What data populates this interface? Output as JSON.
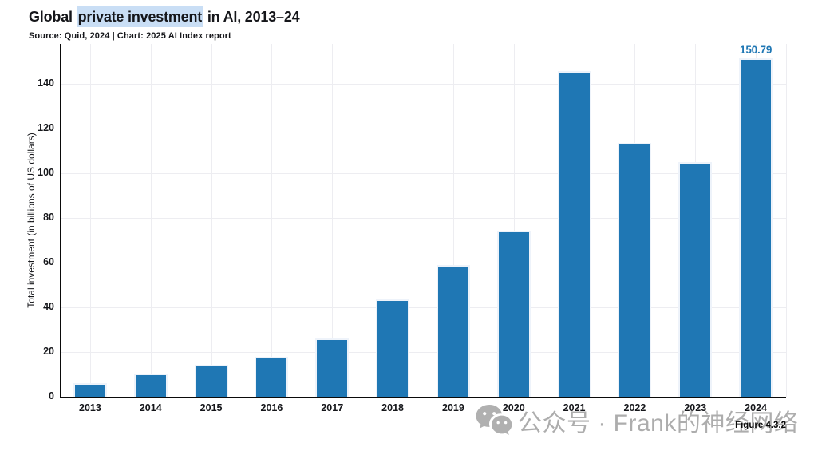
{
  "header": {
    "title_prefix": "Global ",
    "title_highlight": "private investment",
    "title_suffix": " in AI, 2013–24",
    "subtitle": "Source: Quid, 2024 | Chart: 2025 AI Index report"
  },
  "chart_data": {
    "type": "bar",
    "title": "Global private investment in AI, 2013–24",
    "source": "Source: Quid, 2024 | Chart: 2025 AI Index report",
    "categories": [
      "2013",
      "2014",
      "2015",
      "2016",
      "2017",
      "2018",
      "2019",
      "2020",
      "2021",
      "2022",
      "2023",
      "2024"
    ],
    "values": [
      5.4,
      9.5,
      13.6,
      17.2,
      25.5,
      43.0,
      58.1,
      73.6,
      145.2,
      112.9,
      104.3,
      150.79
    ],
    "xlabel": "",
    "ylabel": "Total investment (in billions of US dollars)",
    "ylim": [
      0,
      158
    ],
    "yticks": [
      0,
      20,
      40,
      60,
      80,
      100,
      120,
      140
    ],
    "grid": true,
    "legend": "none",
    "bar_color": "#1f77b4",
    "annotation": {
      "category": "2024",
      "label": "150.79"
    }
  },
  "watermark": {
    "icon": "wechat-icon",
    "text": "公众号 · Frank的神经网络"
  },
  "figure_label": "Figure 4.3.2"
}
